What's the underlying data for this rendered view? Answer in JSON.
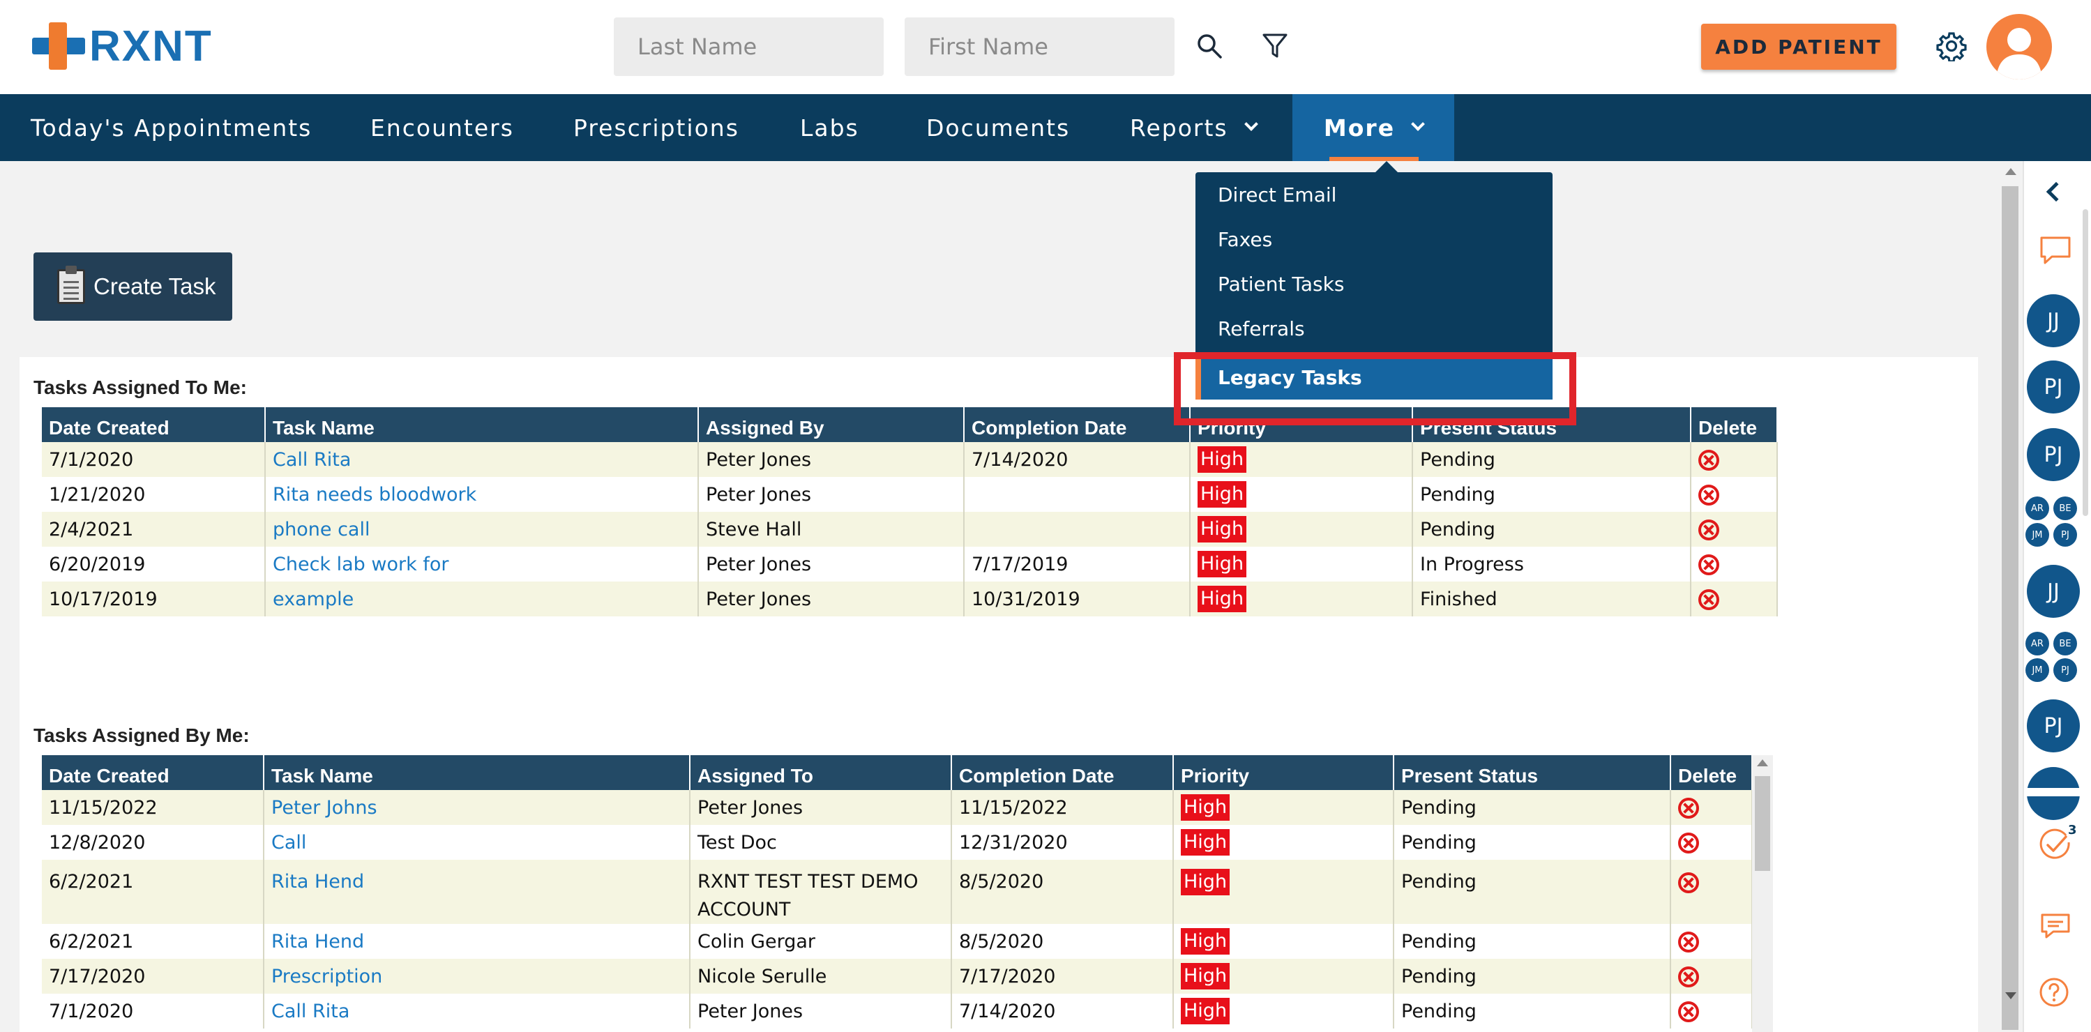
{
  "header": {
    "logo_text": "RXNT",
    "last_name_placeholder": "Last Name",
    "first_name_placeholder": "First Name",
    "add_patient_label": "ADD PATIENT"
  },
  "nav": {
    "items": [
      {
        "label": "Today's Appointments"
      },
      {
        "label": "Encounters"
      },
      {
        "label": "Prescriptions"
      },
      {
        "label": "Labs"
      },
      {
        "label": "Documents"
      },
      {
        "label": "Reports"
      },
      {
        "label": "More"
      }
    ]
  },
  "more_menu": {
    "items": [
      {
        "label": "Direct Email"
      },
      {
        "label": "Faxes"
      },
      {
        "label": "Patient Tasks"
      },
      {
        "label": "Referrals"
      },
      {
        "label": "Legacy Tasks"
      }
    ]
  },
  "create_task_label": "Create Task",
  "assigned_to_me": {
    "title": "Tasks Assigned To Me:",
    "columns": [
      "Date Created",
      "Task Name",
      "Assigned By",
      "Completion Date",
      "Priority",
      "Present Status",
      "Delete"
    ],
    "rows": [
      {
        "date": "7/1/2020",
        "task": "Call Rita",
        "by": "Peter Jones",
        "completion": "7/14/2020",
        "priority": "High",
        "status": "Pending"
      },
      {
        "date": "1/21/2020",
        "task": "Rita needs bloodwork",
        "by": "Peter Jones",
        "completion": "",
        "priority": "High",
        "status": "Pending"
      },
      {
        "date": "2/4/2021",
        "task": "phone call",
        "by": "Steve Hall",
        "completion": "",
        "priority": "High",
        "status": "Pending"
      },
      {
        "date": "6/20/2019",
        "task": "Check lab work for",
        "by": "Peter Jones",
        "completion": "7/17/2019",
        "priority": "High",
        "status": "In Progress"
      },
      {
        "date": "10/17/2019",
        "task": "example",
        "by": "Peter Jones",
        "completion": "10/31/2019",
        "priority": "High",
        "status": "Finished"
      }
    ]
  },
  "assigned_by_me": {
    "title": "Tasks Assigned By Me:",
    "columns": [
      "Date Created",
      "Task Name",
      "Assigned To",
      "Completion Date",
      "Priority",
      "Present Status",
      "Delete"
    ],
    "rows": [
      {
        "date": "11/15/2022",
        "task": "Peter Johns",
        "to": "Peter Jones",
        "completion": "11/15/2022",
        "priority": "High",
        "status": "Pending"
      },
      {
        "date": "12/8/2020",
        "task": "Call",
        "to": "Test Doc",
        "completion": "12/31/2020",
        "priority": "High",
        "status": "Pending"
      },
      {
        "date": "6/2/2021",
        "task": "Rita Hend",
        "to": "RXNT TEST TEST DEMO ACCOUNT",
        "completion": "8/5/2020",
        "priority": "High",
        "status": "Pending"
      },
      {
        "date": "6/2/2021",
        "task": "Rita Hend",
        "to": "Colin Gergar",
        "completion": "8/5/2020",
        "priority": "High",
        "status": "Pending"
      },
      {
        "date": "7/17/2020",
        "task": "Prescription",
        "to": "Nicole Serulle",
        "completion": "7/17/2020",
        "priority": "High",
        "status": "Pending"
      },
      {
        "date": "7/1/2020",
        "task": "Call Rita",
        "to": "Peter Jones",
        "completion": "7/14/2020",
        "priority": "High",
        "status": "Pending"
      }
    ]
  },
  "right_sidebar": {
    "avatars": [
      "JJ",
      "PJ",
      "PJ",
      "JJ",
      "PJ"
    ],
    "mini_group": [
      "AR",
      "BE",
      "JM",
      "PJ"
    ],
    "tasks_badge": "3"
  },
  "colors": {
    "brand_blue": "#1a6fb3",
    "brand_orange": "#f5813f",
    "nav_bg": "#0b3c5d",
    "highlight_red": "#e0252b",
    "priority_red": "#e8101a"
  }
}
